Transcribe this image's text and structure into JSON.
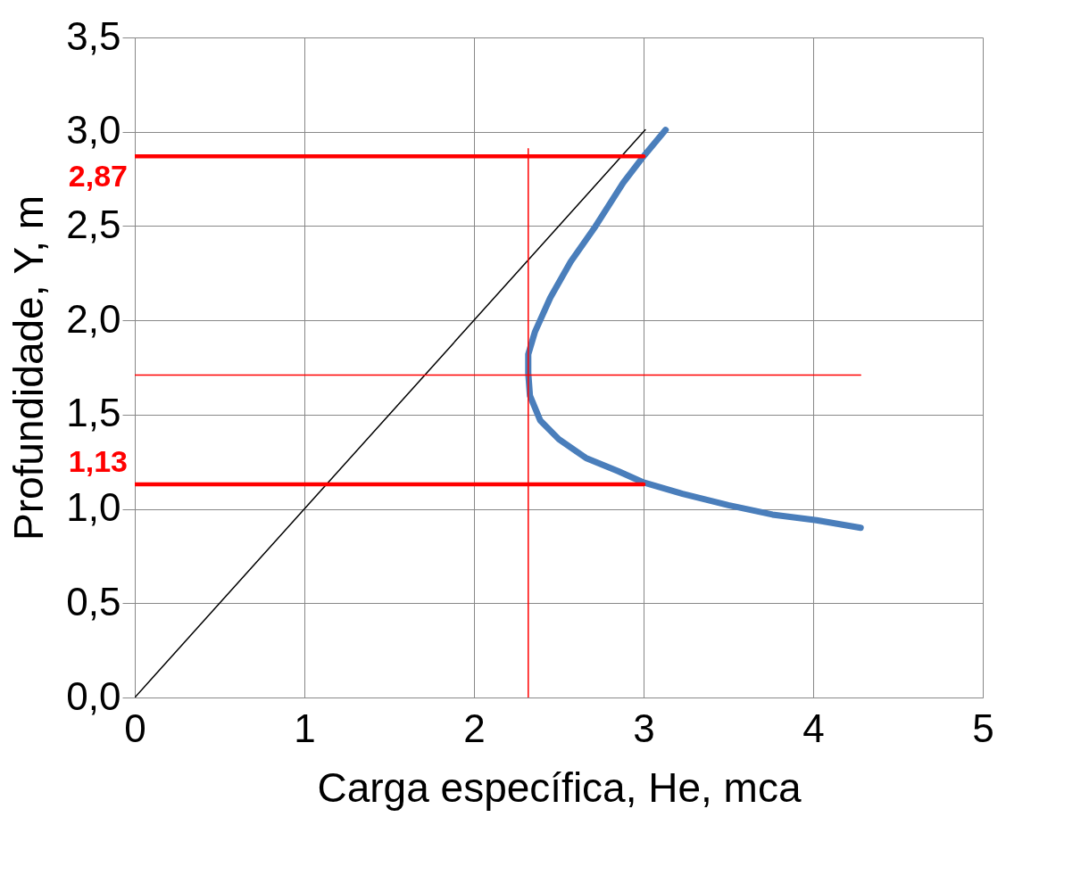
{
  "chart_data": {
    "type": "line",
    "xlabel": "Carga específica, He, mca",
    "ylabel": "Profundidade, Y, m",
    "xlim": [
      0,
      5
    ],
    "xticks": [
      0,
      1,
      2,
      3,
      4,
      5
    ],
    "ylim": [
      0,
      3.5
    ],
    "yticks": [
      {
        "value": 0,
        "label": "0,0"
      },
      {
        "value": 0.5,
        "label": "0,5"
      },
      {
        "value": 1,
        "label": "1,0"
      },
      {
        "value": 1.5,
        "label": "1,5"
      },
      {
        "value": 2,
        "label": "2,0"
      },
      {
        "value": 2.5,
        "label": "2,5"
      },
      {
        "value": 3,
        "label": "3,0"
      },
      {
        "value": 3.5,
        "label": "3,5"
      }
    ],
    "grid": true,
    "series": [
      {
        "color": "#4a7ebb",
        "x": [
          3.13,
          3.0,
          2.88,
          2.71,
          2.57,
          2.45,
          2.36,
          2.32,
          2.32,
          2.33,
          2.39,
          2.5,
          2.66,
          2.85,
          3.0,
          3.23,
          3.5,
          3.76,
          4.02,
          4.28
        ],
        "values": [
          3.01,
          2.87,
          2.73,
          2.49,
          2.31,
          2.12,
          1.94,
          1.82,
          1.72,
          1.6,
          1.47,
          1.37,
          1.27,
          1.2,
          1.14,
          1.08,
          1.02,
          0.97,
          0.94,
          0.9
        ]
      },
      {
        "color": "#000000",
        "x": [
          0,
          3.01
        ],
        "values": [
          0,
          3.01
        ]
      },
      {
        "color": "#ff0000",
        "x": [
          0,
          3.0
        ],
        "values": [
          2.87,
          2.87
        ]
      },
      {
        "color": "#ff0000",
        "x": [
          0,
          3.0
        ],
        "values": [
          1.13,
          1.13
        ]
      },
      {
        "color": "#ff0000",
        "x": [
          0,
          4.28
        ],
        "values": [
          1.71,
          1.71
        ]
      },
      {
        "color": "#ff0000",
        "x": [
          2.32,
          2.32
        ],
        "values": [
          0,
          2.91
        ]
      }
    ],
    "annotations": [
      {
        "text": "2,87",
        "x": 0,
        "y": 2.87
      },
      {
        "text": "1,13",
        "x": 0,
        "y": 1.13
      }
    ]
  }
}
